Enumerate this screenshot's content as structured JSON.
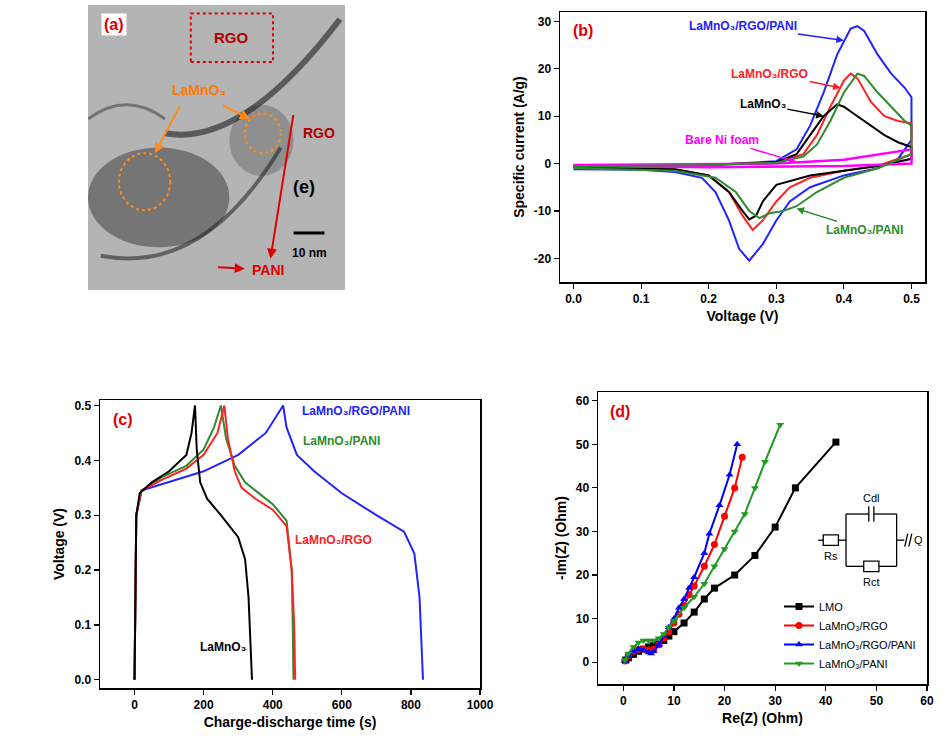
{
  "chart_data": [
    {
      "type": "image",
      "annotations": [
        "(a)",
        "RGO",
        "LaMnO₃",
        "RGO",
        "(e)",
        "PANI",
        "10 nm"
      ]
    },
    {
      "type": "line",
      "annotations": [
        "(b)"
      ],
      "xlabel": "Voltage (V)",
      "ylabel": "Specific current (A/g)",
      "xlim": [
        -0.02,
        0.52
      ],
      "ylim": [
        -25,
        32
      ],
      "xticks": [
        {
          "value": 0,
          "label": "0.0"
        },
        0.1,
        0.2,
        0.3,
        0.4,
        0.5
      ],
      "yticks": [
        -20,
        -10,
        0,
        10,
        20,
        30
      ],
      "grid": false,
      "series": [
        {
          "name": "LaMnO₃/RGO/PANI",
          "color": "#2222ff",
          "line_style": "solid",
          "x": [
            0,
            0.1,
            0.2,
            0.3,
            0.33,
            0.35,
            0.37,
            0.39,
            0.41,
            0.42,
            0.43,
            0.45,
            0.47,
            0.49,
            0.5,
            0.5,
            0.48,
            0.45,
            0.4,
            0.35,
            0.32,
            0.3,
            0.28,
            0.26,
            0.245,
            0.23,
            0.21,
            0.19,
            0.15,
            0.1,
            0
          ],
          "values": [
            -1,
            -0.6,
            -0.3,
            0.5,
            3,
            8,
            15,
            23,
            28.5,
            29,
            28,
            23,
            19,
            16,
            14,
            5,
            1,
            -1,
            -2.5,
            -5,
            -8,
            -12,
            -17,
            -20.5,
            -18,
            -12,
            -6,
            -3,
            -1.8,
            -1.3,
            -1.2
          ]
        },
        {
          "name": "LaMnO₃/RGO",
          "color": "#ff2222",
          "line_style": "solid",
          "x": [
            0,
            0.2,
            0.3,
            0.34,
            0.36,
            0.38,
            0.4,
            0.41,
            0.42,
            0.44,
            0.46,
            0.48,
            0.5,
            0.5,
            0.45,
            0.4,
            0.35,
            0.32,
            0.3,
            0.28,
            0.265,
            0.25,
            0.23,
            0.2,
            0.15,
            0
          ],
          "values": [
            -0.5,
            -0.2,
            0.2,
            2,
            6,
            12,
            17.5,
            19,
            18,
            13,
            10,
            9,
            8.5,
            2,
            -0.5,
            -1.5,
            -3,
            -5,
            -8,
            -12,
            -14,
            -11,
            -6,
            -2.5,
            -1.2,
            -0.8
          ]
        },
        {
          "name": "LaMnO₃",
          "color": "#000000",
          "line_style": "solid",
          "x": [
            0,
            0.2,
            0.3,
            0.33,
            0.35,
            0.37,
            0.39,
            0.4,
            0.42,
            0.44,
            0.46,
            0.48,
            0.5,
            0.5,
            0.45,
            0.4,
            0.35,
            0.3,
            0.28,
            0.27,
            0.26,
            0.25,
            0.23,
            0.2,
            0.15,
            0
          ],
          "values": [
            -0.5,
            -0.3,
            0.3,
            2,
            6,
            10,
            12.5,
            12,
            10,
            8,
            6,
            4.5,
            3.5,
            1,
            -0.5,
            -1.5,
            -2.5,
            -4.5,
            -8,
            -11,
            -11.8,
            -10,
            -6,
            -2.5,
            -1.2,
            -0.8
          ]
        },
        {
          "name": "Bare Ni foam",
          "color": "#ff00ff",
          "line_style": "solid",
          "x": [
            0,
            0.3,
            0.4,
            0.5,
            0.5,
            0.4,
            0.2,
            0
          ],
          "values": [
            -0.3,
            0,
            0.8,
            3,
            0,
            -0.5,
            -0.8,
            -0.5
          ]
        },
        {
          "name": "LaMnO₃/PANI",
          "color": "#2e8b2e",
          "line_style": "solid",
          "x": [
            0,
            0.2,
            0.3,
            0.34,
            0.36,
            0.38,
            0.4,
            0.42,
            0.43,
            0.45,
            0.47,
            0.49,
            0.5,
            0.5,
            0.45,
            0.4,
            0.36,
            0.33,
            0.31,
            0.29,
            0.275,
            0.26,
            0.24,
            0.21,
            0.15,
            0
          ],
          "values": [
            -0.6,
            -0.3,
            0.2,
            1.5,
            4,
            9,
            15,
            19,
            18.5,
            15,
            12,
            9,
            8,
            2,
            -1,
            -3,
            -6,
            -9,
            -10,
            -10.5,
            -11.5,
            -10,
            -6,
            -3,
            -1.5,
            -1
          ]
        }
      ]
    },
    {
      "type": "line",
      "annotations": [
        "(c)"
      ],
      "xlabel": "Charge-discharge time (s)",
      "ylabel": "Voltage (V)",
      "xlim": [
        -100,
        1000
      ],
      "ylim": [
        -0.015,
        0.51
      ],
      "xticks": [
        0,
        200,
        400,
        600,
        800,
        1000
      ],
      "yticks": [
        {
          "value": 0,
          "label": "0.0"
        },
        0.1,
        0.2,
        0.3,
        0.4,
        0.5
      ],
      "grid": false,
      "series": [
        {
          "name": "LaMnO₃/RGO/PANI",
          "color": "#2222ff",
          "line_style": "solid",
          "x": [
            0,
            5,
            20,
            100,
            200,
            300,
            380,
            430,
            440,
            470,
            520,
            600,
            700,
            780,
            810,
            825,
            832,
            835
          ],
          "values": [
            0,
            0.3,
            0.345,
            0.36,
            0.38,
            0.41,
            0.45,
            0.5,
            0.46,
            0.41,
            0.38,
            0.34,
            0.3,
            0.27,
            0.23,
            0.15,
            0.05,
            0
          ]
        },
        {
          "name": "LaMnO₃/PANI",
          "color": "#2e8b2e",
          "line_style": "solid",
          "x": [
            0,
            5,
            20,
            80,
            150,
            200,
            230,
            250,
            265,
            290,
            320,
            360,
            400,
            440,
            455,
            458,
            460
          ],
          "values": [
            0,
            0.3,
            0.345,
            0.37,
            0.39,
            0.42,
            0.46,
            0.5,
            0.44,
            0.39,
            0.36,
            0.34,
            0.32,
            0.29,
            0.2,
            0.1,
            0
          ]
        },
        {
          "name": "LaMnO₃/RGO",
          "color": "#ff2222",
          "line_style": "solid",
          "x": [
            0,
            5,
            20,
            80,
            150,
            200,
            240,
            260,
            270,
            290,
            310,
            350,
            400,
            440,
            455,
            462,
            465
          ],
          "values": [
            0,
            0.3,
            0.345,
            0.365,
            0.385,
            0.41,
            0.45,
            0.5,
            0.44,
            0.38,
            0.35,
            0.33,
            0.31,
            0.28,
            0.2,
            0.1,
            0
          ]
        },
        {
          "name": "LaMnO₃",
          "color": "#000000",
          "line_style": "solid",
          "x": [
            0,
            5,
            15,
            50,
            100,
            150,
            165,
            175,
            180,
            190,
            210,
            250,
            300,
            320,
            330,
            338,
            340
          ],
          "values": [
            0,
            0.3,
            0.34,
            0.36,
            0.38,
            0.41,
            0.45,
            0.5,
            0.42,
            0.36,
            0.33,
            0.3,
            0.26,
            0.22,
            0.15,
            0.05,
            0
          ]
        }
      ]
    },
    {
      "type": "scatter",
      "annotations": [
        "(d)",
        "Rs",
        "Cdl",
        "Rct",
        "Q"
      ],
      "xlabel": "Re(Z) (Ohm)",
      "ylabel": "-Im(Z) (Ohm)",
      "xlim": [
        -5,
        60
      ],
      "ylim": [
        -5,
        62
      ],
      "xticks": [
        0,
        10,
        20,
        30,
        40,
        50,
        60
      ],
      "yticks": [
        0,
        10,
        20,
        30,
        40,
        50,
        60
      ],
      "grid": false,
      "legend": "lower right",
      "series": [
        {
          "name": "LMO",
          "color": "#000000",
          "marker": "square",
          "line_style": "solid",
          "x": [
            0.5,
            1,
            2,
            3,
            4,
            5,
            6,
            7,
            8,
            9,
            10,
            12,
            14,
            16,
            18,
            22,
            26,
            30,
            34,
            42
          ],
          "values": [
            0.5,
            1,
            1.8,
            2.5,
            3,
            3.5,
            3.8,
            4.2,
            5,
            6,
            7,
            9,
            11.5,
            14.5,
            17,
            20,
            24.5,
            31,
            40,
            50.5
          ]
        },
        {
          "name": "LaMnO₃/RGO",
          "color": "#ff0000",
          "marker": "circle",
          "line_style": "solid",
          "x": [
            0.3,
            1,
            2,
            3,
            4,
            5,
            6,
            7,
            8,
            9,
            10,
            11,
            12,
            13,
            14,
            16,
            18,
            20,
            22,
            23.5
          ],
          "values": [
            0.3,
            1.5,
            2.5,
            3,
            3,
            2.8,
            3,
            4,
            5.5,
            7,
            9,
            11,
            13,
            15.5,
            17.5,
            22,
            27,
            33.5,
            40,
            47
          ]
        },
        {
          "name": "LaMnO₃/RGO/PANI",
          "color": "#0000ff",
          "marker": "triangle-up",
          "line_style": "solid",
          "x": [
            0.3,
            1,
            2,
            3,
            4,
            5,
            5.5,
            6,
            7,
            8,
            9,
            10,
            11,
            12,
            13,
            14,
            16,
            17,
            19,
            21,
            22.5
          ],
          "values": [
            0.3,
            1.5,
            2.5,
            3,
            2.8,
            2.2,
            2,
            2.5,
            4,
            6,
            8,
            10,
            12.5,
            14.5,
            17,
            19.5,
            25,
            29.5,
            36,
            43,
            50
          ]
        },
        {
          "name": "LaMnO₃/PANI",
          "color": "#229922",
          "marker": "triangle-down",
          "line_style": "solid",
          "x": [
            0.3,
            1,
            2,
            3,
            4,
            5,
            6,
            7,
            8,
            9,
            10,
            12,
            14,
            16,
            18,
            20,
            22,
            24,
            26,
            28,
            31
          ],
          "values": [
            0.5,
            2,
            3.5,
            4.5,
            5,
            5,
            5,
            5.5,
            6.5,
            8,
            9.5,
            12.5,
            15,
            18,
            22,
            26,
            30,
            34,
            40,
            46,
            54.5
          ]
        }
      ]
    }
  ]
}
